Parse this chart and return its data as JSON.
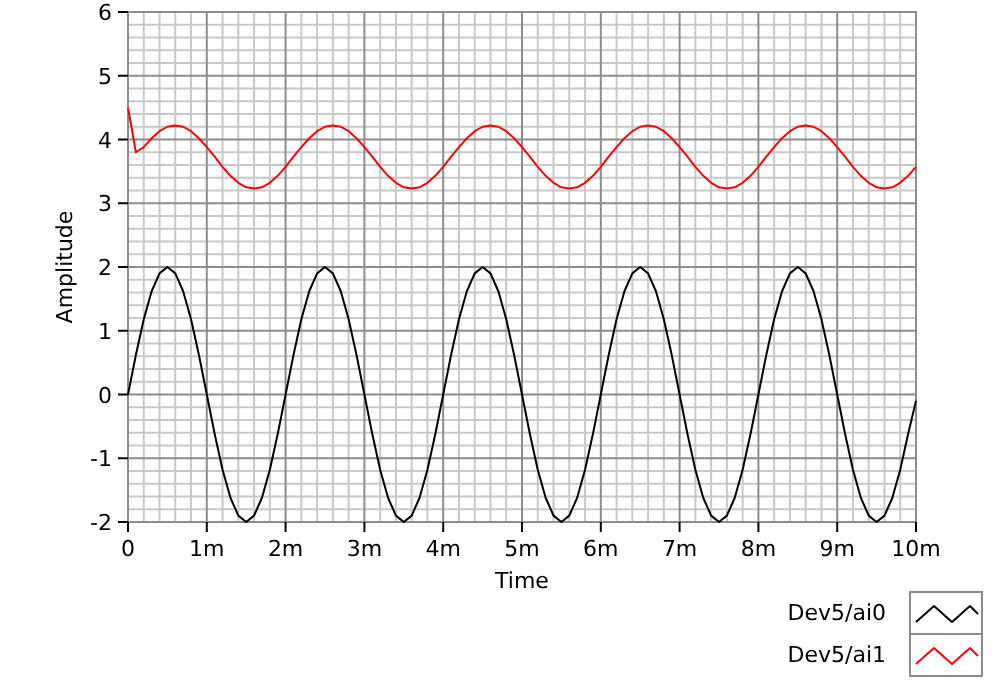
{
  "chart_data": {
    "type": "line",
    "xlabel": "Time",
    "ylabel": "Amplitude",
    "x": [
      0,
      0.1,
      0.2,
      0.3,
      0.4,
      0.5,
      0.6,
      0.7,
      0.8,
      0.9,
      1,
      1.1,
      1.2,
      1.3,
      1.4,
      1.5,
      1.6,
      1.7,
      1.8,
      1.9,
      2,
      2.1,
      2.2,
      2.3,
      2.4,
      2.5,
      2.6,
      2.7,
      2.8,
      2.9,
      3,
      3.1,
      3.2,
      3.3,
      3.4,
      3.5,
      3.6,
      3.7,
      3.8,
      3.9,
      4,
      4.1,
      4.2,
      4.3,
      4.4,
      4.5,
      4.6,
      4.7,
      4.8,
      4.9,
      5,
      5.1,
      5.2,
      5.3,
      5.4,
      5.5,
      5.6,
      5.7,
      5.8,
      5.9,
      6,
      6.1,
      6.2,
      6.3,
      6.4,
      6.5,
      6.6,
      6.7,
      6.8,
      6.9,
      7,
      7.1,
      7.2,
      7.3,
      7.4,
      7.5,
      7.6,
      7.7,
      7.8,
      7.9,
      8,
      8.1,
      8.2,
      8.3,
      8.4,
      8.5,
      8.6,
      8.7,
      8.8,
      8.9,
      9,
      9.1,
      9.2,
      9.3,
      9.4,
      9.5,
      9.6,
      9.7,
      9.8,
      9.9,
      10
    ],
    "series": [
      {
        "name": "Dev5/ai0",
        "color": "#000000",
        "values": [
          0,
          0.62,
          1.18,
          1.62,
          1.9,
          2,
          1.9,
          1.62,
          1.18,
          0.62,
          0,
          -0.62,
          -1.18,
          -1.62,
          -1.9,
          -2,
          -1.9,
          -1.62,
          -1.18,
          -0.62,
          0,
          0.62,
          1.18,
          1.62,
          1.9,
          2,
          1.9,
          1.62,
          1.18,
          0.62,
          0,
          -0.62,
          -1.18,
          -1.62,
          -1.9,
          -2,
          -1.9,
          -1.62,
          -1.18,
          -0.62,
          0,
          0.62,
          1.18,
          1.62,
          1.9,
          2,
          1.9,
          1.62,
          1.18,
          0.62,
          0,
          -0.62,
          -1.18,
          -1.62,
          -1.9,
          -2,
          -1.9,
          -1.62,
          -1.18,
          -0.62,
          0,
          0.62,
          1.18,
          1.62,
          1.9,
          2,
          1.9,
          1.62,
          1.18,
          0.62,
          0,
          -0.62,
          -1.18,
          -1.62,
          -1.9,
          -2,
          -1.9,
          -1.62,
          -1.18,
          -0.62,
          0,
          0.62,
          1.18,
          1.62,
          1.9,
          2,
          1.9,
          1.62,
          1.18,
          0.62,
          0,
          -0.62,
          -1.18,
          -1.62,
          -1.9,
          -2,
          -1.9,
          -1.62,
          -1.18,
          -0.62,
          -0.1
        ]
      },
      {
        "name": "Dev5/ai1",
        "color": "#ff0000",
        "values": [
          4.5,
          3.8,
          3.88,
          4.02,
          4.13,
          4.2,
          4.22,
          4.2,
          4.13,
          4.02,
          3.88,
          3.73,
          3.57,
          3.43,
          3.32,
          3.25,
          3.23,
          3.25,
          3.32,
          3.43,
          3.57,
          3.73,
          3.88,
          4.02,
          4.13,
          4.2,
          4.22,
          4.2,
          4.13,
          4.02,
          3.88,
          3.73,
          3.57,
          3.43,
          3.32,
          3.25,
          3.23,
          3.25,
          3.32,
          3.43,
          3.57,
          3.73,
          3.88,
          4.02,
          4.13,
          4.2,
          4.22,
          4.2,
          4.13,
          4.02,
          3.88,
          3.73,
          3.57,
          3.43,
          3.32,
          3.25,
          3.23,
          3.25,
          3.32,
          3.43,
          3.57,
          3.73,
          3.88,
          4.02,
          4.13,
          4.2,
          4.22,
          4.2,
          4.13,
          4.02,
          3.88,
          3.73,
          3.57,
          3.43,
          3.32,
          3.25,
          3.23,
          3.25,
          3.32,
          3.43,
          3.57,
          3.73,
          3.88,
          4.02,
          4.13,
          4.2,
          4.22,
          4.2,
          4.13,
          4.02,
          3.88,
          3.73,
          3.57,
          3.43,
          3.32,
          3.25,
          3.23,
          3.25,
          3.32,
          3.43,
          3.57
        ]
      }
    ],
    "xlim": [
      0,
      10
    ],
    "xticks": [
      0,
      {
        "value": 1,
        "label": "1m"
      },
      {
        "value": 2,
        "label": "2m"
      },
      {
        "value": 3,
        "label": "3m"
      },
      {
        "value": 4,
        "label": "4m"
      },
      {
        "value": 5,
        "label": "5m"
      },
      {
        "value": 6,
        "label": "6m"
      },
      {
        "value": 7,
        "label": "7m"
      },
      {
        "value": 8,
        "label": "8m"
      },
      {
        "value": 9,
        "label": "9m"
      },
      {
        "value": 10,
        "label": "10m"
      }
    ],
    "ylim": [
      -2,
      6
    ],
    "yticks": [
      -2,
      -1,
      0,
      1,
      2,
      3,
      4,
      5,
      6
    ],
    "grid": true,
    "legend": "bottom right",
    "marker": "none",
    "line_style": "solid"
  }
}
